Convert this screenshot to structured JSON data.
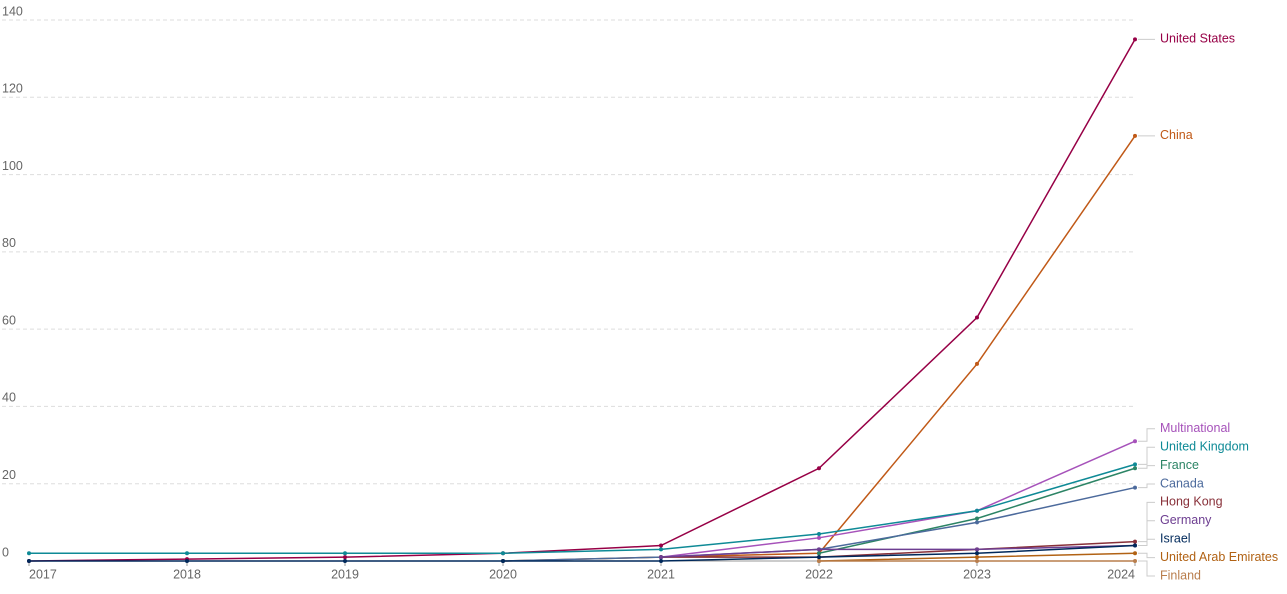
{
  "chart_data": {
    "type": "line",
    "x": [
      2017,
      2018,
      2019,
      2020,
      2021,
      2022,
      2023,
      2024
    ],
    "xlim": [
      2017,
      2024
    ],
    "xticks": [
      2017,
      2018,
      2019,
      2020,
      2021,
      2022,
      2023,
      2024
    ],
    "ylim": [
      0,
      140
    ],
    "yticks": [
      0,
      20,
      40,
      60,
      80,
      100,
      120,
      140
    ],
    "grid": true,
    "series": [
      {
        "name": "United States",
        "color": "#970046",
        "values": [
          0,
          0.5,
          1,
          2,
          4,
          24,
          63,
          135
        ]
      },
      {
        "name": "China",
        "color": "#c05917",
        "values": [
          null,
          null,
          null,
          0,
          1,
          2,
          51,
          110
        ]
      },
      {
        "name": "Multinational",
        "color": "#a652ba",
        "values": [
          null,
          null,
          null,
          null,
          1,
          6,
          13,
          31
        ]
      },
      {
        "name": "United Kingdom",
        "color": "#0e8a96",
        "values": [
          2,
          2,
          2,
          2,
          3,
          7,
          13,
          25
        ]
      },
      {
        "name": "France",
        "color": "#2c8465",
        "values": [
          null,
          null,
          null,
          null,
          null,
          2,
          11,
          24
        ]
      },
      {
        "name": "Canada",
        "color": "#4c6a9c",
        "values": [
          null,
          null,
          null,
          0,
          1,
          3,
          10,
          19
        ]
      },
      {
        "name": "Hong Kong",
        "color": "#883039",
        "values": [
          null,
          null,
          null,
          null,
          1,
          1,
          3,
          5
        ]
      },
      {
        "name": "Germany",
        "color": "#6d3e91",
        "values": [
          null,
          null,
          null,
          null,
          1,
          3,
          3,
          4
        ]
      },
      {
        "name": "Israel",
        "color": "#00295b",
        "values": [
          0,
          0,
          0,
          0,
          0,
          1,
          2,
          4
        ]
      },
      {
        "name": "United Arab Emirates",
        "color": "#b16214",
        "values": [
          null,
          null,
          null,
          null,
          null,
          0,
          1,
          2
        ]
      },
      {
        "name": "Finland",
        "color": "#b97e4d",
        "values": [
          null,
          null,
          null,
          null,
          null,
          0,
          0,
          0
        ]
      }
    ]
  }
}
